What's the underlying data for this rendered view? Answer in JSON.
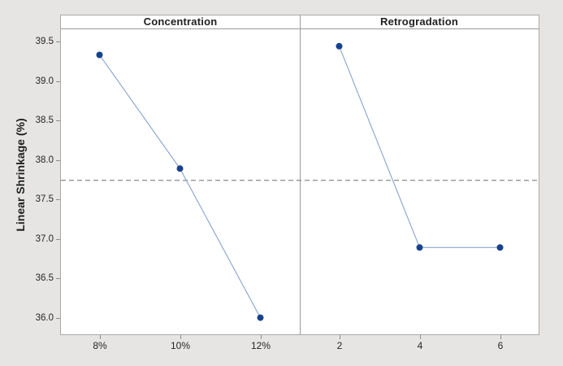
{
  "chart_data": {
    "type": "line",
    "variant": "main-effects-plot",
    "title": "",
    "ylabel": "Linear Shrinkage (%)",
    "ytick_labels": [
      "39.5",
      "39.0",
      "38.5",
      "38.0",
      "37.5",
      "37.0",
      "36.5",
      "36.0"
    ],
    "ylim": [
      35.78,
      39.675
    ],
    "grid": false,
    "legend": false,
    "mean_line": 37.74,
    "panels": [
      {
        "label": "Concentration",
        "categories": [
          "8%",
          "10%",
          "12%"
        ],
        "values": [
          39.33,
          37.89,
          36.0
        ]
      },
      {
        "label": "Retrogradation",
        "categories": [
          "2",
          "4",
          "6"
        ],
        "values": [
          39.44,
          36.89,
          36.89
        ]
      }
    ],
    "colors": {
      "marker": "#17428c",
      "segment": "#7d9bc8",
      "mean_line": "#6e6e6e",
      "frame_border": "#a8a8a8",
      "panel_divider": "#9a9a9a",
      "background": "#e6e5e3",
      "plot_background": "#ffffff",
      "text": "#262626"
    }
  }
}
